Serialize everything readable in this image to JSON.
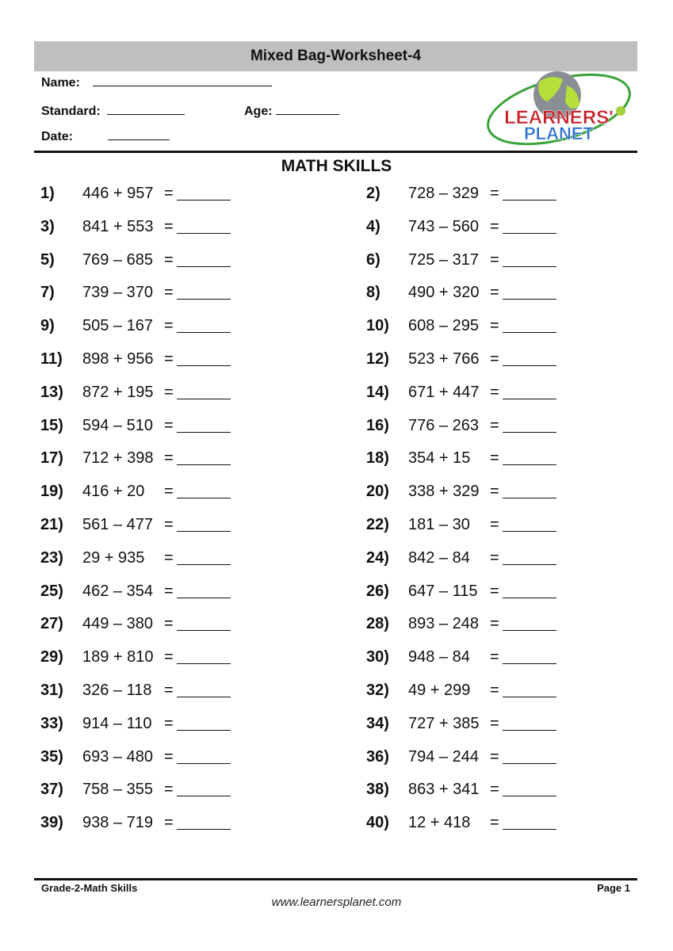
{
  "title": "Mixed Bag-Worksheet-4",
  "fields": {
    "name": "Name:",
    "standard": "Standard:",
    "age": "Age:",
    "date": "Date:"
  },
  "logo": {
    "line1": "LEARNERS'",
    "line2": "PLANET"
  },
  "section_title": "MATH SKILLS",
  "problems": [
    {
      "n": "1)",
      "e": "446 + 957"
    },
    {
      "n": "2)",
      "e": "728 – 329"
    },
    {
      "n": "3)",
      "e": "841 + 553"
    },
    {
      "n": "4)",
      "e": "743 – 560"
    },
    {
      "n": "5)",
      "e": "769 – 685"
    },
    {
      "n": "6)",
      "e": "725 – 317"
    },
    {
      "n": "7)",
      "e": "739 – 370"
    },
    {
      "n": "8)",
      "e": "490 + 320"
    },
    {
      "n": "9)",
      "e": "505 – 167"
    },
    {
      "n": "10)",
      "e": "608 – 295"
    },
    {
      "n": "11)",
      "e": "898 + 956"
    },
    {
      "n": "12)",
      "e": "523 + 766"
    },
    {
      "n": "13)",
      "e": "872 + 195"
    },
    {
      "n": "14)",
      "e": "671 + 447"
    },
    {
      "n": "15)",
      "e": "594 – 510"
    },
    {
      "n": "16)",
      "e": "776 – 263"
    },
    {
      "n": "17)",
      "e": "712 + 398"
    },
    {
      "n": "18)",
      "e": "354 + 15"
    },
    {
      "n": "19)",
      "e": "416 + 20"
    },
    {
      "n": "20)",
      "e": "338 + 329"
    },
    {
      "n": "21)",
      "e": "561 – 477"
    },
    {
      "n": "22)",
      "e": "181 – 30"
    },
    {
      "n": "23)",
      "e": "29 + 935"
    },
    {
      "n": "24)",
      "e": "842 – 84"
    },
    {
      "n": "25)",
      "e": "462 – 354"
    },
    {
      "n": "26)",
      "e": "647 – 115"
    },
    {
      "n": "27)",
      "e": "449 – 380"
    },
    {
      "n": "28)",
      "e": "893 – 248"
    },
    {
      "n": "29)",
      "e": "189 + 810"
    },
    {
      "n": "30)",
      "e": "948 – 84"
    },
    {
      "n": "31)",
      "e": "326 – 118"
    },
    {
      "n": "32)",
      "e": "49 + 299"
    },
    {
      "n": "33)",
      "e": "914 – 110"
    },
    {
      "n": "34)",
      "e": "727 + 385"
    },
    {
      "n": "35)",
      "e": "693 – 480"
    },
    {
      "n": "36)",
      "e": "794 – 244"
    },
    {
      "n": "37)",
      "e": "758 – 355"
    },
    {
      "n": "38)",
      "e": "863 + 341"
    },
    {
      "n": "39)",
      "e": "938 – 719"
    },
    {
      "n": "40)",
      "e": "12 + 418"
    }
  ],
  "equals": "=",
  "footer": {
    "left": "Grade-2-Math Skills",
    "right": "Page 1",
    "url": "www.learnersplanet.com"
  }
}
